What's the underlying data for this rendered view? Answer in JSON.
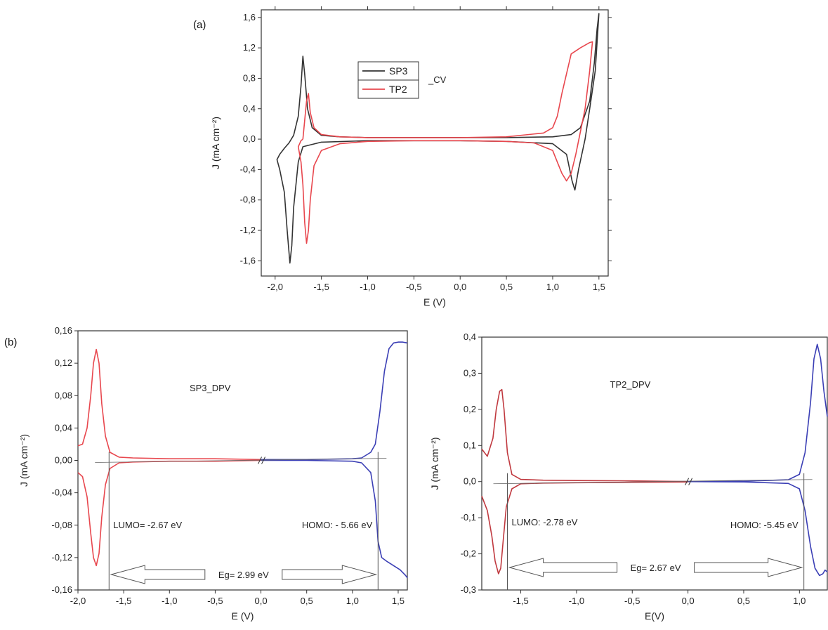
{
  "panels": {
    "a": "(a)",
    "b": "(b)"
  },
  "chart_data": [
    {
      "type": "line",
      "id": "cv",
      "xlabel": "E (V)",
      "ylabel": "J (mA cm⁻²)",
      "xlim": [
        -2.15,
        1.6
      ],
      "ylim": [
        -1.8,
        1.7
      ],
      "xticks": [
        -2.0,
        -1.5,
        -1.0,
        -0.5,
        0.0,
        0.5,
        1.0,
        1.5
      ],
      "xtick_labels": [
        "-2,0",
        "-1,5",
        "-1,0",
        "-0,5",
        "0,0",
        "0,5",
        "1,0",
        "1,5"
      ],
      "yticks": [
        -1.6,
        -1.2,
        -0.8,
        -0.4,
        0.0,
        0.4,
        0.8,
        1.2,
        1.6
      ],
      "ytick_labels": [
        "-1,6",
        "-1,2",
        "-0,8",
        "-0,4",
        "0,0",
        "0,4",
        "0,8",
        "1,2",
        "1,6"
      ],
      "legend": {
        "entries": [
          "SP3",
          "TP2"
        ],
        "suffix": "_CV",
        "position": "top-center"
      },
      "series": [
        {
          "name": "SP3",
          "color": "#333333",
          "x": [
            -1.75,
            -1.72,
            -1.7,
            -1.68,
            -1.65,
            -1.6,
            -1.5,
            -1.3,
            -1.0,
            -0.5,
            0.0,
            0.5,
            1.0,
            1.2,
            1.3,
            1.4,
            1.45,
            1.48,
            1.5,
            1.46,
            1.4,
            1.35,
            1.28,
            1.24,
            1.21,
            1.15,
            1.0,
            0.5,
            0.0,
            -0.5,
            -1.0,
            -1.5,
            -1.7,
            -1.75,
            -1.8,
            -1.82,
            -1.84,
            -1.87,
            -1.9,
            -1.95,
            -1.98,
            -1.95,
            -1.9,
            -1.85,
            -1.8,
            -1.75
          ],
          "y": [
            0.3,
            0.7,
            1.09,
            0.85,
            0.4,
            0.15,
            0.05,
            0.03,
            0.02,
            0.02,
            0.02,
            0.02,
            0.03,
            0.06,
            0.15,
            0.5,
            1.0,
            1.45,
            1.65,
            0.9,
            0.4,
            0.0,
            -0.4,
            -0.67,
            -0.55,
            -0.2,
            -0.06,
            -0.03,
            -0.02,
            -0.02,
            -0.02,
            -0.04,
            -0.1,
            -0.3,
            -0.9,
            -1.4,
            -1.63,
            -1.2,
            -0.7,
            -0.4,
            -0.27,
            -0.2,
            -0.12,
            -0.05,
            0.05,
            0.3
          ]
        },
        {
          "name": "TP2",
          "color": "#e8474e",
          "x": [
            -1.7,
            -1.68,
            -1.66,
            -1.64,
            -1.62,
            -1.58,
            -1.5,
            -1.3,
            -1.0,
            -0.5,
            0.0,
            0.5,
            0.9,
            1.0,
            1.05,
            1.1,
            1.2,
            1.3,
            1.4,
            1.43,
            1.4,
            1.35,
            1.3,
            1.25,
            1.2,
            1.15,
            1.1,
            1.05,
            1.0,
            0.8,
            0.5,
            0.0,
            -0.5,
            -1.0,
            -1.3,
            -1.5,
            -1.58,
            -1.62,
            -1.64,
            -1.66,
            -1.68,
            -1.7,
            -1.72,
            -1.75,
            -1.72,
            -1.7
          ],
          "y": [
            0.0,
            0.25,
            0.5,
            0.6,
            0.35,
            0.15,
            0.06,
            0.03,
            0.02,
            0.02,
            0.02,
            0.03,
            0.08,
            0.15,
            0.3,
            0.6,
            1.12,
            1.2,
            1.27,
            1.28,
            0.9,
            0.4,
            0.1,
            -0.2,
            -0.45,
            -0.55,
            -0.45,
            -0.3,
            -0.15,
            -0.05,
            -0.03,
            -0.02,
            -0.02,
            -0.03,
            -0.06,
            -0.15,
            -0.35,
            -0.8,
            -1.2,
            -1.37,
            -1.1,
            -0.6,
            -0.3,
            -0.1,
            -0.02,
            0.0
          ]
        }
      ]
    },
    {
      "type": "line",
      "id": "sp3_dpv",
      "title": "SP3_DPV",
      "xlabel": "E (V)",
      "ylabel": "J (mA cm⁻²)",
      "xlim": [
        -2.0,
        1.6
      ],
      "ylim": [
        -0.16,
        0.16
      ],
      "xticks": [
        -2.0,
        -1.5,
        -1.0,
        -0.5,
        0.0,
        0.5,
        1.0,
        1.5
      ],
      "xtick_labels": [
        "-2,0",
        "-1,5",
        "-1,0",
        "-0,5",
        "0,0",
        "0,5",
        "1,0",
        "1,5"
      ],
      "yticks": [
        -0.16,
        -0.12,
        -0.08,
        -0.04,
        0.0,
        0.04,
        0.08,
        0.12,
        0.16
      ],
      "ytick_labels": [
        "-0,16",
        "-0,12",
        "-0,08",
        "-0,04",
        "0,00",
        "0,04",
        "0,08",
        "0,12",
        "0,16"
      ],
      "annotations": {
        "lumo": "LUMO= -2.67 eV",
        "homo": "HOMO: - 5.66 eV",
        "eg": "Eg= 2.99 eV"
      },
      "onset": {
        "lumo_x": -1.66,
        "homo_x": 1.28
      },
      "series": [
        {
          "name": "",
          "color": "#e8474e",
          "x": [
            -2.0,
            -1.95,
            -1.9,
            -1.86,
            -1.83,
            -1.8,
            -1.77,
            -1.74,
            -1.7,
            -1.65,
            -1.55,
            -1.4,
            -1.0,
            -0.5,
            0.0
          ],
          "y": [
            0.018,
            0.02,
            0.04,
            0.08,
            0.12,
            0.137,
            0.12,
            0.07,
            0.03,
            0.01,
            0.004,
            0.003,
            0.002,
            0.002,
            0.001
          ]
        },
        {
          "name": "",
          "color": "#e8474e",
          "x": [
            -2.0,
            -1.95,
            -1.9,
            -1.86,
            -1.83,
            -1.8,
            -1.77,
            -1.74,
            -1.7,
            -1.65,
            -1.55,
            -1.4,
            -1.0,
            -0.5,
            0.0
          ],
          "y": [
            -0.015,
            -0.02,
            -0.045,
            -0.09,
            -0.12,
            -0.13,
            -0.115,
            -0.07,
            -0.03,
            -0.01,
            -0.003,
            -0.002,
            -0.001,
            -0.001,
            0.0
          ]
        },
        {
          "name": "",
          "color": "#3b3fb5",
          "x": [
            0.0,
            0.5,
            1.0,
            1.1,
            1.2,
            1.25,
            1.3,
            1.35,
            1.4,
            1.45,
            1.5,
            1.55,
            1.6
          ],
          "y": [
            0.001,
            0.001,
            0.002,
            0.003,
            0.01,
            0.02,
            0.06,
            0.11,
            0.138,
            0.145,
            0.146,
            0.146,
            0.145
          ]
        },
        {
          "name": "",
          "color": "#3b3fb5",
          "x": [
            0.0,
            0.5,
            1.0,
            1.1,
            1.2,
            1.25,
            1.28,
            1.32,
            1.38,
            1.45,
            1.52,
            1.58,
            1.6
          ],
          "y": [
            0.0,
            0.0,
            -0.001,
            -0.003,
            -0.015,
            -0.05,
            -0.1,
            -0.12,
            -0.125,
            -0.13,
            -0.135,
            -0.142,
            -0.145
          ]
        }
      ]
    },
    {
      "type": "line",
      "id": "tp2_dpv",
      "title": "TP2_DPV",
      "xlabel": "E(V)",
      "ylabel": "J (mA cm⁻²)",
      "xlim": [
        -1.85,
        1.25
      ],
      "ylim": [
        -0.3,
        0.4
      ],
      "xticks": [
        -1.5,
        -1.0,
        -0.5,
        0.0,
        0.5,
        1.0
      ],
      "xtick_labels": [
        "-1,5",
        "-1,0",
        "-0,5",
        "0,0",
        "0,5",
        "1,0"
      ],
      "yticks": [
        -0.3,
        -0.2,
        -0.1,
        0.0,
        0.1,
        0.2,
        0.3,
        0.4
      ],
      "ytick_labels": [
        "-0,3",
        "-0,2",
        "-0,1",
        "0,0",
        "0,1",
        "0,2",
        "0,3",
        "0,4"
      ],
      "annotations": {
        "lumo": "LUMO: -2.78 eV",
        "homo": "HOMO: -5.45 eV",
        "eg": "Eg= 2.67 eV"
      },
      "onset": {
        "lumo_x": -1.62,
        "homo_x": 1.04
      },
      "series": [
        {
          "name": "",
          "color": "#c0393f",
          "x": [
            -1.85,
            -1.8,
            -1.75,
            -1.72,
            -1.69,
            -1.67,
            -1.65,
            -1.62,
            -1.58,
            -1.5,
            -1.3,
            -1.0,
            -0.5,
            0.0
          ],
          "y": [
            0.09,
            0.07,
            0.12,
            0.2,
            0.25,
            0.255,
            0.2,
            0.08,
            0.02,
            0.006,
            0.004,
            0.003,
            0.002,
            0.0
          ]
        },
        {
          "name": "",
          "color": "#c0393f",
          "x": [
            -1.85,
            -1.8,
            -1.76,
            -1.73,
            -1.7,
            -1.68,
            -1.66,
            -1.63,
            -1.58,
            -1.5,
            -1.3,
            -1.0,
            -0.5,
            0.0
          ],
          "y": [
            -0.04,
            -0.08,
            -0.15,
            -0.22,
            -0.255,
            -0.24,
            -0.17,
            -0.07,
            -0.02,
            -0.006,
            -0.004,
            -0.003,
            -0.002,
            -0.001
          ]
        },
        {
          "name": "",
          "color": "#3b3fb5",
          "x": [
            0.0,
            0.5,
            0.9,
            1.0,
            1.05,
            1.1,
            1.13,
            1.16,
            1.19,
            1.22,
            1.25
          ],
          "y": [
            0.0,
            0.001,
            0.005,
            0.02,
            0.08,
            0.22,
            0.34,
            0.38,
            0.34,
            0.25,
            0.18
          ]
        },
        {
          "name": "",
          "color": "#3b3fb5",
          "x": [
            0.0,
            0.5,
            0.9,
            1.0,
            1.05,
            1.1,
            1.14,
            1.18,
            1.21,
            1.23,
            1.25
          ],
          "y": [
            0.0,
            -0.001,
            -0.005,
            -0.02,
            -0.08,
            -0.18,
            -0.24,
            -0.26,
            -0.255,
            -0.245,
            -0.25
          ]
        }
      ]
    }
  ]
}
